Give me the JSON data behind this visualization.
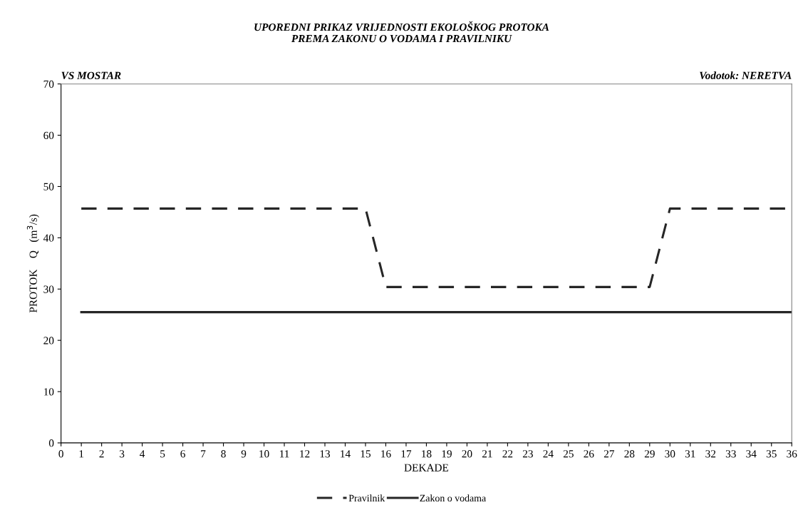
{
  "chart_data": {
    "type": "line",
    "title": "UPOREDNI PRIKAZ VRIJEDNOSTI EKOLOŠKOG PROTOKA\nPREMA ZAKONU O VODAMA I PRAVILNIKU",
    "xlabel": "DEKADE",
    "ylabel": "PROTOK    Q   (m$^{3}$/s)",
    "annotations": [
      "VS MOSTAR",
      "Vodotok: NERETVA"
    ],
    "x": [
      1,
      2,
      3,
      4,
      5,
      6,
      7,
      8,
      9,
      10,
      11,
      12,
      13,
      14,
      15,
      16,
      17,
      18,
      19,
      20,
      21,
      22,
      23,
      24,
      25,
      26,
      27,
      28,
      29,
      30,
      31,
      32,
      33,
      34,
      35,
      36
    ],
    "series": [
      {
        "name": "Pravilnik",
        "color": "#262626",
        "line_style": "dashed",
        "values": [
          45.7,
          45.7,
          45.7,
          45.7,
          45.7,
          45.7,
          45.7,
          45.7,
          45.7,
          45.7,
          45.7,
          45.7,
          45.7,
          45.7,
          45.7,
          30.4,
          30.4,
          30.4,
          30.4,
          30.4,
          30.4,
          30.4,
          30.4,
          30.4,
          30.4,
          30.4,
          30.4,
          30.4,
          30.4,
          45.7,
          45.7,
          45.7,
          45.7,
          45.7,
          45.7,
          45.7
        ]
      },
      {
        "name": "Zakon o vodama",
        "color": "#262626",
        "line_style": "solid",
        "values": [
          25.5,
          25.5,
          25.5,
          25.5,
          25.5,
          25.5,
          25.5,
          25.5,
          25.5,
          25.5,
          25.5,
          25.5,
          25.5,
          25.5,
          25.5,
          25.5,
          25.5,
          25.5,
          25.5,
          25.5,
          25.5,
          25.5,
          25.5,
          25.5,
          25.5,
          25.5,
          25.5,
          25.5,
          25.5,
          25.5,
          25.5,
          25.5,
          25.5,
          25.5,
          25.5,
          25.5
        ]
      }
    ],
    "xlim": [
      0,
      36
    ],
    "xticks": [
      0,
      1,
      2,
      3,
      4,
      5,
      6,
      7,
      8,
      9,
      10,
      11,
      12,
      13,
      14,
      15,
      16,
      17,
      18,
      19,
      20,
      21,
      22,
      23,
      24,
      25,
      26,
      27,
      28,
      29,
      30,
      31,
      32,
      33,
      34,
      35,
      36
    ],
    "ylim": [
      0,
      70
    ],
    "yticks": [
      0,
      10,
      20,
      30,
      40,
      50,
      60,
      70
    ],
    "grid": false,
    "legend": "bottom",
    "marker": "none"
  }
}
